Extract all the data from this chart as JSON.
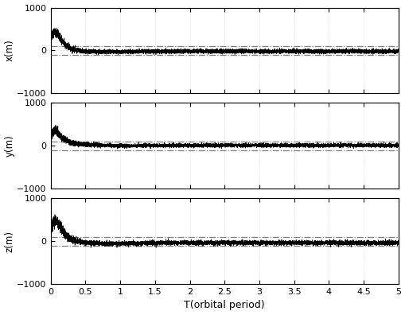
{
  "title": "",
  "xlabel": "T(orbital period)",
  "ylabels": [
    "x(m)",
    "y(m)",
    "z(m)"
  ],
  "xlim": [
    0,
    5
  ],
  "ylim": [
    -1000,
    1000
  ],
  "yticks": [
    -1000,
    0,
    1000
  ],
  "xticks": [
    0,
    0.5,
    1,
    1.5,
    2,
    2.5,
    3,
    3.5,
    4,
    4.5,
    5
  ],
  "xticklabels": [
    "0",
    "0.5",
    "1",
    "1.5",
    "2",
    "2.5",
    "3",
    "3.5",
    "4",
    "4.5",
    "5"
  ],
  "hline_pos": 100,
  "hline_neg": -100,
  "hline_color": "#666666",
  "signal_color": "#000000",
  "grid_color": "#aaaaaa",
  "bg_color": "#ffffff",
  "n_points": 8000,
  "figsize": [
    5.1,
    3.96
  ],
  "dpi": 100
}
